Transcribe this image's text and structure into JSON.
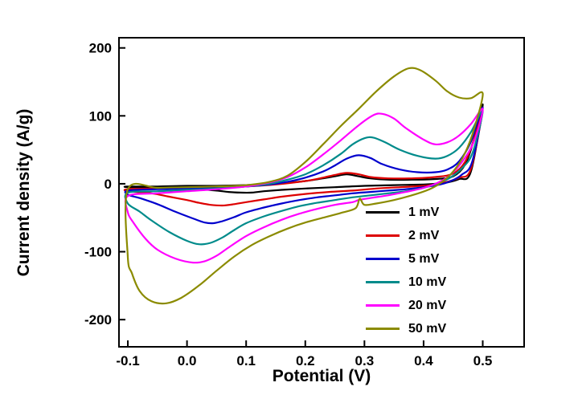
{
  "chart_data": {
    "type": "line",
    "subtype": "cyclic-voltammetry",
    "title": "",
    "xlabel": "Potential (V)",
    "ylabel": "Current density (A/g)",
    "xlim": [
      -0.115,
      0.57
    ],
    "ylim": [
      -240,
      215
    ],
    "x_ticks": [
      -0.1,
      0.0,
      0.1,
      0.2,
      0.3,
      0.4,
      0.5
    ],
    "x_tick_labels": [
      "-0.1",
      "0.0",
      "0.1",
      "0.2",
      "0.3",
      "0.4",
      "0.5"
    ],
    "y_ticks": [
      -200,
      -100,
      0,
      100,
      200
    ],
    "y_tick_labels": [
      "-200",
      "-100",
      "0",
      "100",
      "200"
    ],
    "grid": false,
    "frame_color": "#000000",
    "legend_position": "lower-right-inside",
    "series": [
      {
        "name": "1 mV",
        "color": "#000000",
        "points": [
          [
            -0.1,
            -4
          ],
          [
            -0.05,
            -4
          ],
          [
            0.0,
            -3
          ],
          [
            0.05,
            -3
          ],
          [
            0.1,
            -2
          ],
          [
            0.15,
            0
          ],
          [
            0.2,
            4
          ],
          [
            0.23,
            8
          ],
          [
            0.25,
            11
          ],
          [
            0.27,
            14
          ],
          [
            0.29,
            11
          ],
          [
            0.31,
            8
          ],
          [
            0.34,
            6
          ],
          [
            0.38,
            6
          ],
          [
            0.42,
            7
          ],
          [
            0.45,
            11
          ],
          [
            0.47,
            28
          ],
          [
            0.485,
            65
          ],
          [
            0.5,
            116
          ],
          [
            0.48,
            18
          ],
          [
            0.46,
            7
          ],
          [
            0.44,
            2
          ],
          [
            0.42,
            0
          ],
          [
            0.4,
            -1
          ],
          [
            0.35,
            -2
          ],
          [
            0.3,
            -3
          ],
          [
            0.25,
            -5
          ],
          [
            0.2,
            -7
          ],
          [
            0.16,
            -9
          ],
          [
            0.13,
            -11
          ],
          [
            0.11,
            -13
          ],
          [
            0.09,
            -13
          ],
          [
            0.07,
            -12
          ],
          [
            0.05,
            -10
          ],
          [
            0.02,
            -8
          ],
          [
            -0.02,
            -6
          ],
          [
            -0.06,
            -5
          ],
          [
            -0.1,
            -5
          ]
        ]
      },
      {
        "name": "2 mV",
        "color": "#dd0000",
        "points": [
          [
            -0.1,
            -8
          ],
          [
            -0.05,
            -7
          ],
          [
            0.0,
            -6
          ],
          [
            0.05,
            -5
          ],
          [
            0.1,
            -4
          ],
          [
            0.15,
            -1
          ],
          [
            0.2,
            4
          ],
          [
            0.23,
            9
          ],
          [
            0.25,
            13
          ],
          [
            0.27,
            16
          ],
          [
            0.29,
            14
          ],
          [
            0.31,
            10
          ],
          [
            0.34,
            8
          ],
          [
            0.38,
            8
          ],
          [
            0.42,
            10
          ],
          [
            0.45,
            15
          ],
          [
            0.47,
            32
          ],
          [
            0.485,
            65
          ],
          [
            0.5,
            110
          ],
          [
            0.48,
            22
          ],
          [
            0.46,
            9
          ],
          [
            0.44,
            3
          ],
          [
            0.42,
            -1
          ],
          [
            0.4,
            -3
          ],
          [
            0.36,
            -5
          ],
          [
            0.32,
            -7
          ],
          [
            0.28,
            -10
          ],
          [
            0.24,
            -12
          ],
          [
            0.2,
            -15
          ],
          [
            0.16,
            -19
          ],
          [
            0.13,
            -23
          ],
          [
            0.1,
            -27
          ],
          [
            0.08,
            -30
          ],
          [
            0.06,
            -32
          ],
          [
            0.04,
            -31
          ],
          [
            0.02,
            -28
          ],
          [
            0.0,
            -24
          ],
          [
            -0.03,
            -19
          ],
          [
            -0.06,
            -14
          ],
          [
            -0.1,
            -11
          ]
        ]
      },
      {
        "name": "5 mV",
        "color": "#0000cd",
        "points": [
          [
            -0.1,
            -10
          ],
          [
            -0.05,
            -8
          ],
          [
            0.0,
            -7
          ],
          [
            0.05,
            -6
          ],
          [
            0.1,
            -4
          ],
          [
            0.14,
            -1
          ],
          [
            0.17,
            3
          ],
          [
            0.2,
            9
          ],
          [
            0.23,
            18
          ],
          [
            0.25,
            27
          ],
          [
            0.27,
            37
          ],
          [
            0.29,
            42
          ],
          [
            0.31,
            38
          ],
          [
            0.33,
            29
          ],
          [
            0.36,
            21
          ],
          [
            0.39,
            17
          ],
          [
            0.42,
            17
          ],
          [
            0.44,
            21
          ],
          [
            0.46,
            33
          ],
          [
            0.48,
            62
          ],
          [
            0.5,
            112
          ],
          [
            0.482,
            32
          ],
          [
            0.464,
            13
          ],
          [
            0.446,
            4
          ],
          [
            0.428,
            -1
          ],
          [
            0.4,
            -5
          ],
          [
            0.37,
            -8
          ],
          [
            0.34,
            -10
          ],
          [
            0.31,
            -12
          ],
          [
            0.28,
            -14
          ],
          [
            0.25,
            -17
          ],
          [
            0.22,
            -20
          ],
          [
            0.19,
            -24
          ],
          [
            0.16,
            -29
          ],
          [
            0.13,
            -35
          ],
          [
            0.1,
            -42
          ],
          [
            0.08,
            -49
          ],
          [
            0.06,
            -55
          ],
          [
            0.045,
            -58
          ],
          [
            0.03,
            -57
          ],
          [
            0.01,
            -51
          ],
          [
            -0.02,
            -41
          ],
          [
            -0.05,
            -30
          ],
          [
            -0.08,
            -21
          ],
          [
            -0.1,
            -16
          ]
        ]
      },
      {
        "name": "10 mV",
        "color": "#008b8b",
        "points": [
          [
            -0.1,
            -13
          ],
          [
            -0.05,
            -11
          ],
          [
            0.0,
            -9
          ],
          [
            0.05,
            -7
          ],
          [
            0.1,
            -4
          ],
          [
            0.14,
            0
          ],
          [
            0.17,
            6
          ],
          [
            0.2,
            14
          ],
          [
            0.23,
            27
          ],
          [
            0.26,
            44
          ],
          [
            0.28,
            58
          ],
          [
            0.3,
            67
          ],
          [
            0.315,
            68
          ],
          [
            0.335,
            61
          ],
          [
            0.36,
            50
          ],
          [
            0.39,
            41
          ],
          [
            0.42,
            37
          ],
          [
            0.44,
            41
          ],
          [
            0.46,
            53
          ],
          [
            0.48,
            76
          ],
          [
            0.5,
            108
          ],
          [
            0.483,
            46
          ],
          [
            0.465,
            23
          ],
          [
            0.445,
            9
          ],
          [
            0.425,
            1
          ],
          [
            0.4,
            -6
          ],
          [
            0.37,
            -11
          ],
          [
            0.34,
            -14
          ],
          [
            0.31,
            -17
          ],
          [
            0.28,
            -20
          ],
          [
            0.25,
            -24
          ],
          [
            0.22,
            -28
          ],
          [
            0.19,
            -33
          ],
          [
            0.16,
            -40
          ],
          [
            0.13,
            -48
          ],
          [
            0.1,
            -58
          ],
          [
            0.08,
            -68
          ],
          [
            0.06,
            -79
          ],
          [
            0.04,
            -87
          ],
          [
            0.02,
            -89
          ],
          [
            0.0,
            -84
          ],
          [
            -0.03,
            -71
          ],
          [
            -0.06,
            -54
          ],
          [
            -0.08,
            -41
          ],
          [
            -0.1,
            -29
          ]
        ]
      },
      {
        "name": "20 mV",
        "color": "#ff00ff",
        "points": [
          [
            -0.1,
            -18
          ],
          [
            -0.05,
            -14
          ],
          [
            0.0,
            -11
          ],
          [
            0.05,
            -8
          ],
          [
            0.1,
            -4
          ],
          [
            0.14,
            2
          ],
          [
            0.17,
            10
          ],
          [
            0.2,
            24
          ],
          [
            0.23,
            43
          ],
          [
            0.26,
            64
          ],
          [
            0.29,
            86
          ],
          [
            0.315,
            101
          ],
          [
            0.33,
            103
          ],
          [
            0.35,
            96
          ],
          [
            0.37,
            82
          ],
          [
            0.4,
            65
          ],
          [
            0.42,
            58
          ],
          [
            0.44,
            61
          ],
          [
            0.46,
            71
          ],
          [
            0.48,
            88
          ],
          [
            0.5,
            110
          ],
          [
            0.485,
            62
          ],
          [
            0.465,
            32
          ],
          [
            0.445,
            13
          ],
          [
            0.425,
            2
          ],
          [
            0.4,
            -6
          ],
          [
            0.37,
            -12
          ],
          [
            0.34,
            -17
          ],
          [
            0.31,
            -21
          ],
          [
            0.29,
            -24
          ],
          [
            0.28,
            -27
          ],
          [
            0.25,
            -31
          ],
          [
            0.22,
            -37
          ],
          [
            0.19,
            -44
          ],
          [
            0.16,
            -53
          ],
          [
            0.13,
            -64
          ],
          [
            0.1,
            -77
          ],
          [
            0.07,
            -94
          ],
          [
            0.05,
            -106
          ],
          [
            0.03,
            -114
          ],
          [
            0.01,
            -116
          ],
          [
            -0.02,
            -110
          ],
          [
            -0.05,
            -97
          ],
          [
            -0.07,
            -81
          ],
          [
            -0.09,
            -58
          ],
          [
            -0.1,
            -42
          ]
        ]
      },
      {
        "name": "50 mV",
        "color": "#8b8b00",
        "points": [
          [
            -0.1,
            -8
          ],
          [
            -0.05,
            -6
          ],
          [
            0.0,
            -5
          ],
          [
            0.05,
            -4
          ],
          [
            0.1,
            -2
          ],
          [
            0.14,
            3
          ],
          [
            0.17,
            12
          ],
          [
            0.2,
            32
          ],
          [
            0.23,
            58
          ],
          [
            0.26,
            85
          ],
          [
            0.29,
            110
          ],
          [
            0.32,
            136
          ],
          [
            0.35,
            158
          ],
          [
            0.375,
            170
          ],
          [
            0.395,
            167
          ],
          [
            0.42,
            152
          ],
          [
            0.44,
            136
          ],
          [
            0.46,
            127
          ],
          [
            0.48,
            126
          ],
          [
            0.5,
            133
          ],
          [
            0.487,
            85
          ],
          [
            0.47,
            45
          ],
          [
            0.45,
            18
          ],
          [
            0.43,
            2
          ],
          [
            0.41,
            -8
          ],
          [
            0.38,
            -17
          ],
          [
            0.35,
            -24
          ],
          [
            0.32,
            -29
          ],
          [
            0.3,
            -31
          ],
          [
            0.292,
            -22
          ],
          [
            0.285,
            -36
          ],
          [
            0.26,
            -43
          ],
          [
            0.23,
            -50
          ],
          [
            0.2,
            -57
          ],
          [
            0.17,
            -66
          ],
          [
            0.14,
            -77
          ],
          [
            0.11,
            -90
          ],
          [
            0.08,
            -107
          ],
          [
            0.05,
            -128
          ],
          [
            0.02,
            -150
          ],
          [
            -0.01,
            -168
          ],
          [
            -0.035,
            -176
          ],
          [
            -0.06,
            -173
          ],
          [
            -0.08,
            -158
          ],
          [
            -0.093,
            -132
          ],
          [
            -0.1,
            -108
          ]
        ]
      }
    ]
  }
}
